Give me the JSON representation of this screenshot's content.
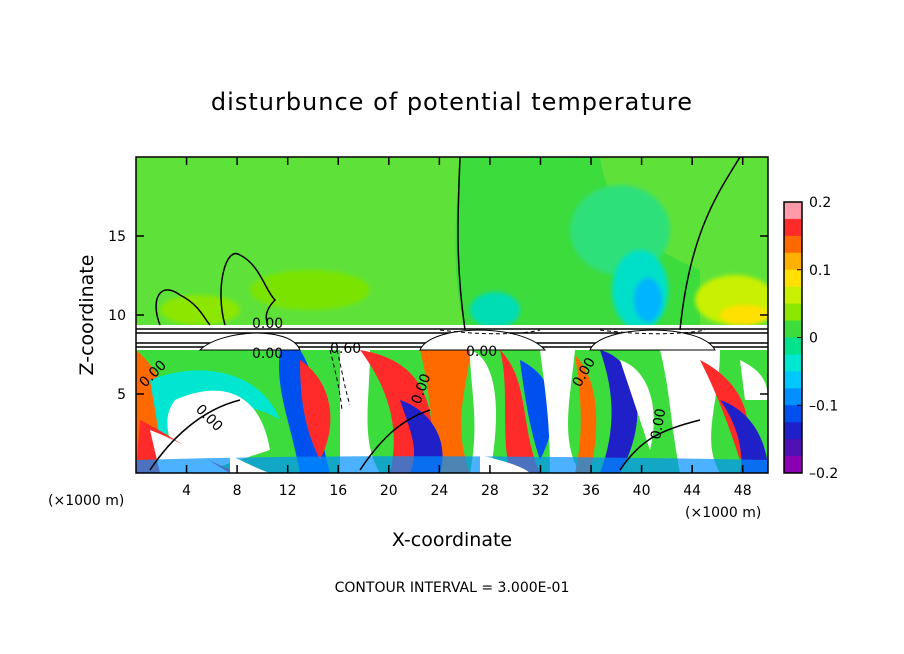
{
  "chart_data": {
    "type": "heatmap",
    "title": "disturbunce of potential temperature",
    "xlabel": "X-coordinate",
    "ylabel": "Z-coordinate",
    "x_unit": "(×1000 m)",
    "x_unit_lower": "(×1000 m)",
    "xlim": [
      0,
      50
    ],
    "ylim": [
      0,
      20
    ],
    "xticks": [
      "4",
      "8",
      "12",
      "16",
      "20",
      "24",
      "28",
      "32",
      "36",
      "40",
      "44",
      "48"
    ],
    "yticks": [
      "5",
      "10",
      "15"
    ],
    "colorbar": {
      "range": [
        -0.2,
        0.2
      ],
      "ticks": [
        "0.2",
        "0.1",
        "0",
        "–0.1",
        "–0.2"
      ],
      "colors": [
        "#ff9aa8",
        "#ff2a2a",
        "#ff6a00",
        "#ffb000",
        "#ffe000",
        "#c8f000",
        "#8ce600",
        "#3cdc3c",
        "#00e28c",
        "#00e6d0",
        "#00c8ff",
        "#0090ff",
        "#0050f0",
        "#2020c8",
        "#5010b4",
        "#8c00b4"
      ]
    },
    "contour_labels": [
      "0.00",
      "0.00",
      "0.60",
      "0.00",
      "0.00",
      "0.00",
      "0.00",
      "0.00",
      "0.00"
    ],
    "footer": "CONTOUR INTERVAL = 3.000E-01"
  }
}
